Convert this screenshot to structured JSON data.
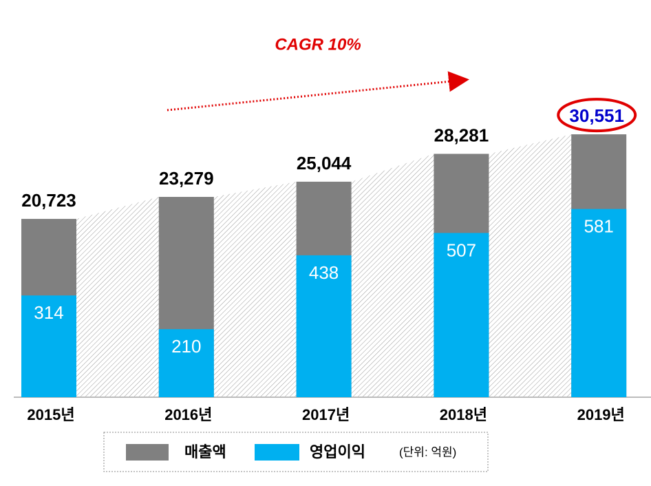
{
  "chart_data": {
    "type": "bar",
    "annotation": "CAGR 10%",
    "note": "(단위: 억원)",
    "categories": [
      "2015년",
      "2016년",
      "2017년",
      "2018년",
      "2019년"
    ],
    "series": [
      {
        "name": "매출액",
        "color": "#808080",
        "values": [
          20723,
          23279,
          25044,
          28281,
          30551
        ],
        "value_labels": [
          "20,723",
          "23,279",
          "25,044",
          "28,281",
          "30,551"
        ]
      },
      {
        "name": "영업이익",
        "color": "#00b0f0",
        "axis": "y2",
        "values": [
          314,
          210,
          438,
          507,
          581
        ]
      }
    ],
    "ylim": [
      0,
      32000
    ],
    "y2lim": [
      0,
      850
    ]
  }
}
